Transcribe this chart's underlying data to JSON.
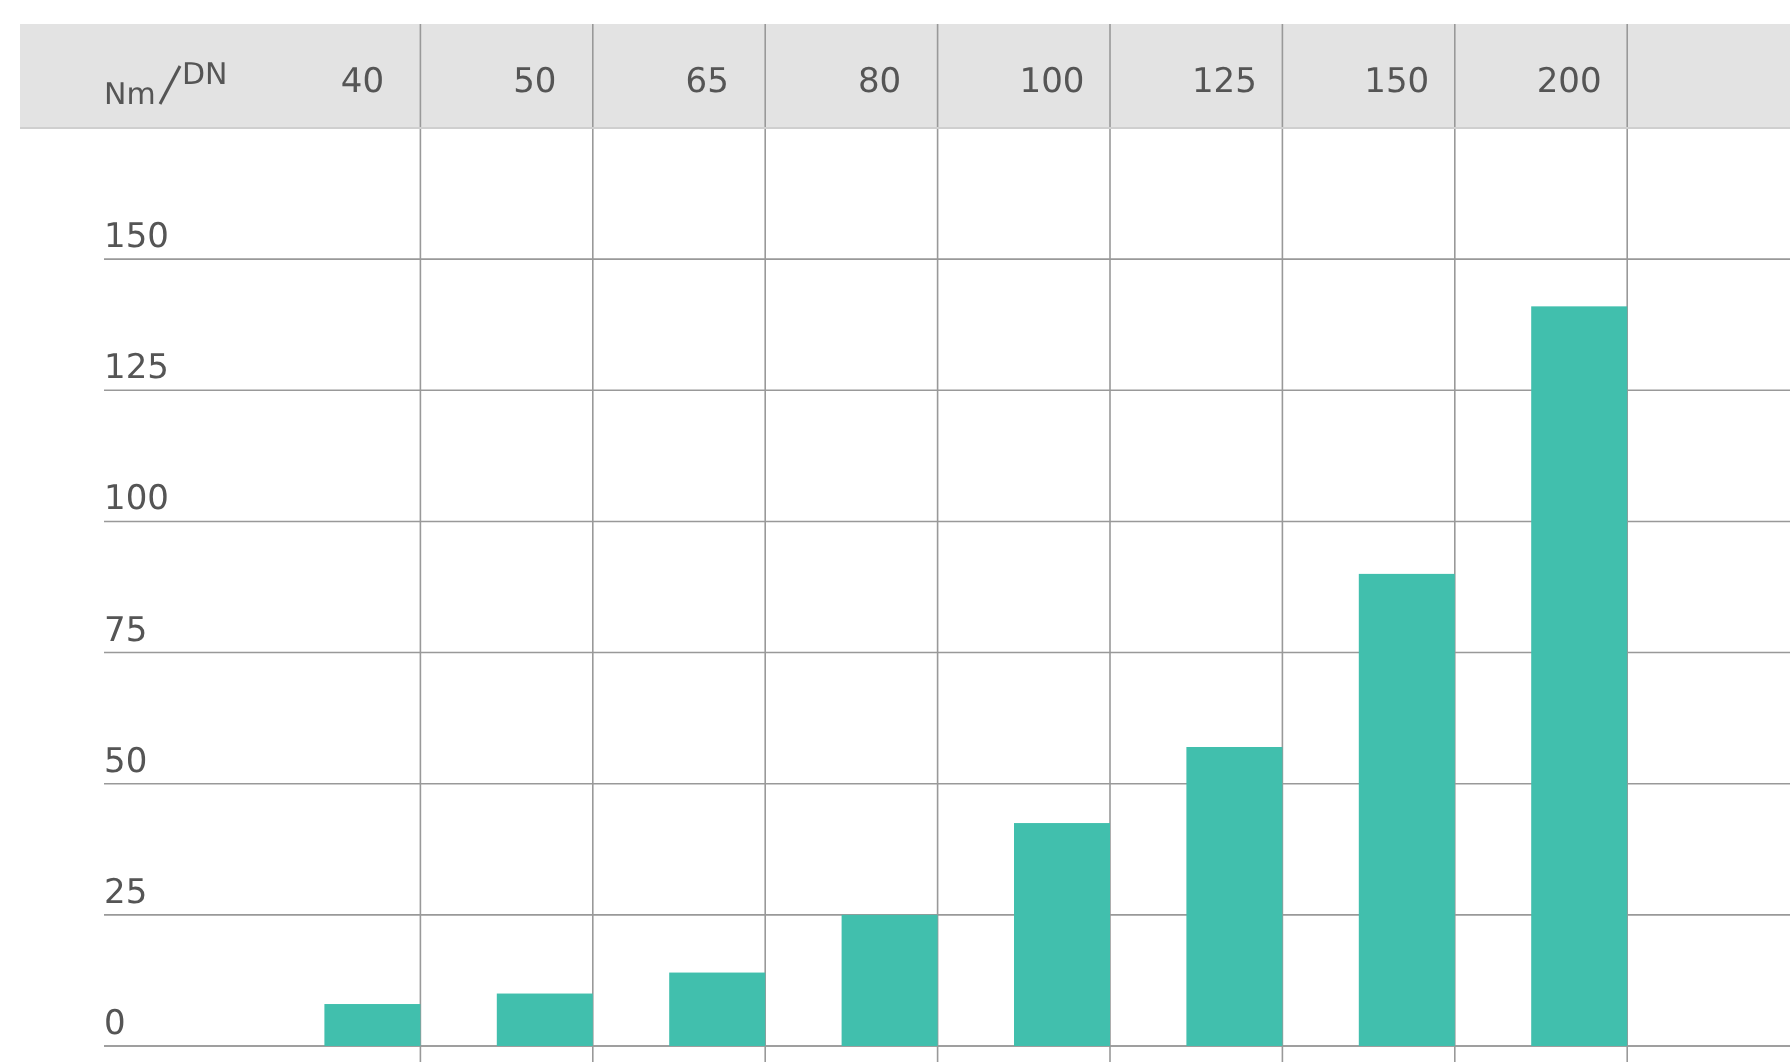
{
  "chart_data": {
    "type": "bar",
    "xlabel": "DN",
    "ylabel": "Nm",
    "categories": [
      "40",
      "50",
      "65",
      "80",
      "100",
      "125",
      "150",
      "200"
    ],
    "values": [
      8,
      10,
      14,
      25,
      42.5,
      57,
      90,
      141
    ],
    "color": "#41bfad",
    "ylim": [
      0,
      175
    ],
    "yticks": [
      0,
      25,
      50,
      75,
      100,
      125,
      150
    ],
    "grid": true
  }
}
